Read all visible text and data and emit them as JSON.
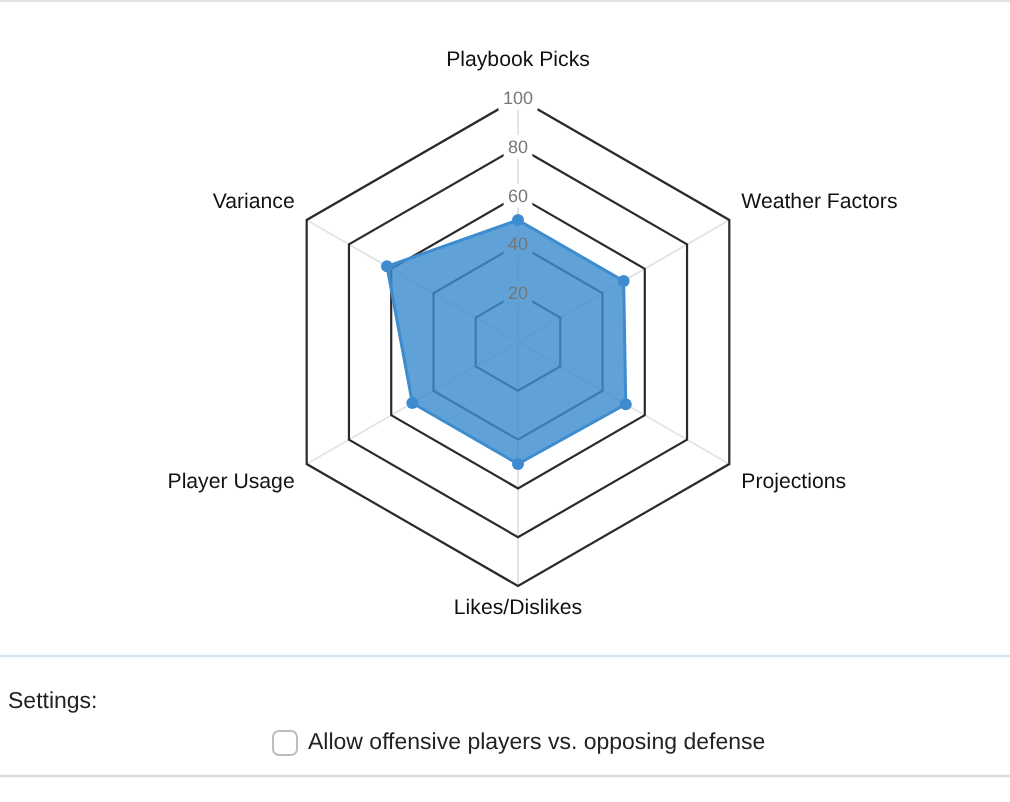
{
  "chart_data": {
    "type": "radar",
    "categories": [
      "Playbook Picks",
      "Weather Factors",
      "Projections",
      "Likes/Dislikes",
      "Player Usage",
      "Variance"
    ],
    "series": [
      {
        "color": "#3d8ccf",
        "values": [
          50,
          50,
          51,
          50,
          50,
          62
        ]
      }
    ],
    "ylim": [
      0,
      100
    ],
    "yticks": [
      20,
      40,
      60,
      80,
      100
    ],
    "grid": true,
    "marker": "circle",
    "annotations": [
      "Settings:",
      "Allow offensive players vs. opposing defense"
    ]
  }
}
